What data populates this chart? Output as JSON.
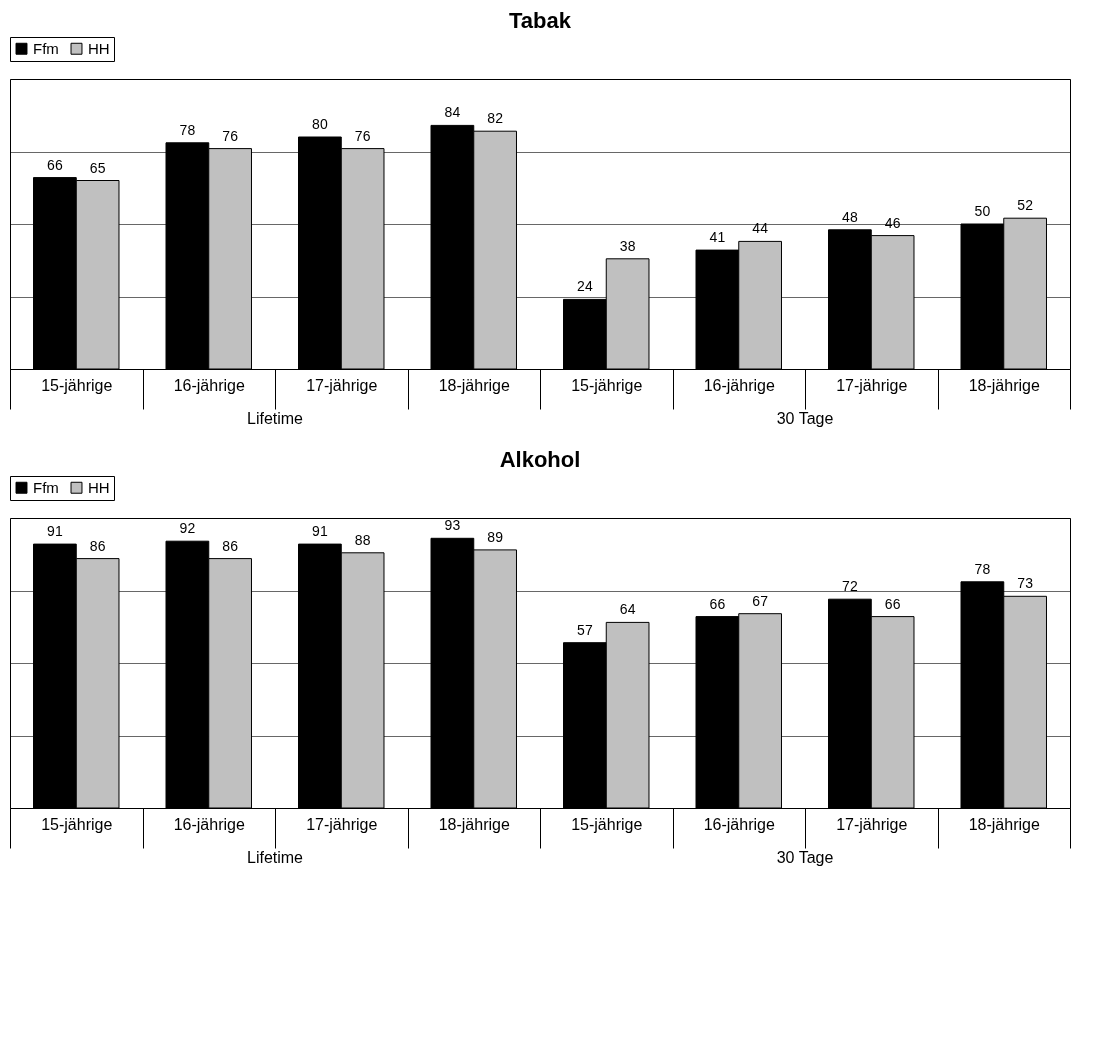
{
  "chart_data": [
    {
      "type": "bar",
      "title": "Tabak",
      "categories": [
        "15-jährige",
        "16-jährige",
        "17-jährige",
        "18-jährige",
        "15-jährige",
        "16-jährige",
        "17-jährige",
        "18-jährige"
      ],
      "series": [
        {
          "name": "Ffm",
          "color": "#000000",
          "values": [
            66,
            78,
            80,
            84,
            24,
            41,
            48,
            50
          ]
        },
        {
          "name": "HH",
          "color": "#c0c0c0",
          "values": [
            65,
            76,
            76,
            82,
            38,
            44,
            46,
            52
          ]
        }
      ],
      "annotations": [
        "Lifetime",
        "30 Tage"
      ],
      "ylim": [
        0,
        100
      ],
      "yticks": [
        {
          "value": 0,
          "label": null
        },
        {
          "value": 25,
          "label": null
        },
        {
          "value": 50,
          "label": null
        },
        {
          "value": 75,
          "label": null
        },
        {
          "value": 100,
          "label": null
        }
      ],
      "grid": "y",
      "legend": "top",
      "tick_labels": "x",
      "data_labels": true
    },
    {
      "type": "bar",
      "title": "Alkohol",
      "categories": [
        "15-jährige",
        "16-jährige",
        "17-jährige",
        "18-jährige",
        "15-jährige",
        "16-jährige",
        "17-jährige",
        "18-jährige"
      ],
      "series": [
        {
          "name": "Ffm",
          "color": "#000000",
          "values": [
            91,
            92,
            91,
            93,
            57,
            66,
            72,
            78
          ]
        },
        {
          "name": "HH",
          "color": "#c0c0c0",
          "values": [
            86,
            86,
            88,
            89,
            64,
            67,
            66,
            73
          ]
        }
      ],
      "annotations": [
        "Lifetime",
        "30 Tage"
      ],
      "ylim": [
        0,
        100
      ],
      "yticks": [
        {
          "value": 0,
          "label": null
        },
        {
          "value": 25,
          "label": null
        },
        {
          "value": 50,
          "label": null
        },
        {
          "value": 75,
          "label": null
        },
        {
          "value": 100,
          "label": null
        }
      ],
      "grid": "y",
      "legend": "top",
      "tick_labels": "x",
      "data_labels": true
    }
  ]
}
